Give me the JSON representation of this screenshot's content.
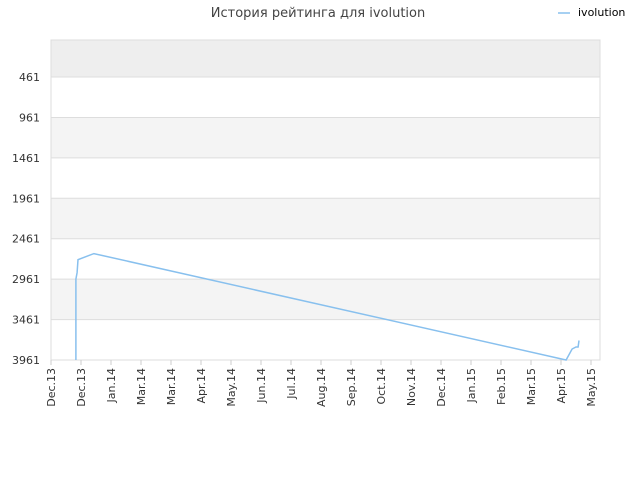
{
  "chart_data": {
    "type": "line",
    "title": "История рейтинга для ivolution",
    "series": [
      {
        "name": "ivolution",
        "color": "#88c0ee",
        "x": [
          0.83,
          0.83,
          0.87,
          0.9,
          1.43,
          17.17,
          17.37,
          17.5,
          17.57,
          17.6
        ],
        "values": [
          3961,
          2960,
          2880,
          2720,
          2645,
          3961,
          3825,
          3800,
          3800,
          3720
        ]
      }
    ],
    "xlim": [
      0,
      18.3
    ],
    "xticks": [
      {
        "value": 0,
        "label": "Dec.13"
      },
      {
        "value": 1,
        "label": "Dec.13"
      },
      {
        "value": 2,
        "label": "Jan.14"
      },
      {
        "value": 3,
        "label": "Mar.14"
      },
      {
        "value": 4,
        "label": "Mar.14"
      },
      {
        "value": 5,
        "label": "Apr.14"
      },
      {
        "value": 6,
        "label": "May.14"
      },
      {
        "value": 7,
        "label": "Jun.14"
      },
      {
        "value": 8,
        "label": "Jul.14"
      },
      {
        "value": 9,
        "label": "Aug.14"
      },
      {
        "value": 10,
        "label": "Sep.14"
      },
      {
        "value": 11,
        "label": "Oct.14"
      },
      {
        "value": 12,
        "label": "Nov.14"
      },
      {
        "value": 13,
        "label": "Dec.14"
      },
      {
        "value": 14,
        "label": "Jan.15"
      },
      {
        "value": 15,
        "label": "Feb.15"
      },
      {
        "value": 16,
        "label": "Mar.15"
      },
      {
        "value": 17,
        "label": "Apr.15"
      },
      {
        "value": 18,
        "label": "May.15"
      }
    ],
    "ylim": [
      3,
      3961
    ],
    "y_inverted": true,
    "yticks": [
      461,
      961,
      1461,
      1961,
      2461,
      2961,
      3461,
      3961
    ],
    "grid": true,
    "legend": "top-right"
  }
}
